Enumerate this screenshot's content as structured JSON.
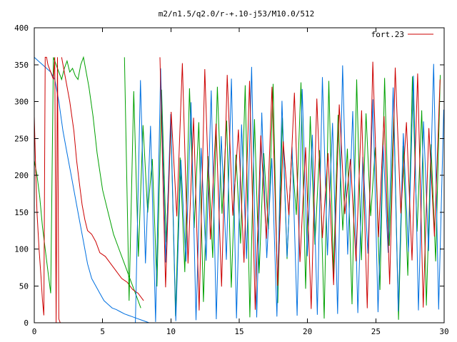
{
  "chart_data": {
    "type": "line",
    "title": "m2/n1.5/q2.0/r-+.10-j53/M10.0/512",
    "xlabel": "",
    "ylabel": "",
    "xlim": [
      0,
      30
    ],
    "ylim": [
      0,
      400
    ],
    "x_ticks": [
      0,
      5,
      10,
      15,
      20,
      25,
      30
    ],
    "y_ticks": [
      0,
      50,
      100,
      150,
      200,
      250,
      300,
      350,
      400
    ],
    "grid": false,
    "legend": {
      "placement": "top-right",
      "entries": [
        "fort.23"
      ]
    },
    "colors": {
      "red": "#cc0000",
      "green": "#00a000",
      "blue": "#0070e0"
    },
    "series": [
      {
        "name": "fort.23",
        "color": "#cc0000",
        "x": [
          0.0,
          0.1,
          0.2,
          0.35,
          0.5,
          0.6,
          0.7,
          0.8,
          0.9,
          1.0,
          1.1,
          1.2,
          1.4,
          1.5,
          1.6,
          1.7,
          1.8,
          1.9,
          2.0
        ],
        "y": [
          280,
          210,
          150,
          100,
          60,
          30,
          10,
          360,
          360,
          350,
          345,
          340,
          330,
          360,
          0,
          360,
          5,
          0,
          0
        ],
        "x2": [
          2.0,
          2.3,
          2.6,
          2.9,
          3.1,
          3.3,
          3.5,
          3.7,
          3.9,
          4.2,
          4.5,
          4.8,
          5.2,
          5.6,
          6.0,
          6.4,
          6.8,
          7.2,
          7.6,
          8.0
        ],
        "y2": [
          360,
          330,
          300,
          260,
          220,
          190,
          160,
          140,
          125,
          120,
          110,
          95,
          90,
          80,
          70,
          60,
          55,
          45,
          40,
          30
        ]
      },
      {
        "name": "",
        "color": "#00a000",
        "x": [
          0.0,
          0.2,
          0.4,
          0.6,
          0.8,
          1.0,
          1.2,
          1.4,
          1.6,
          1.8,
          2.0,
          2.2,
          2.4,
          2.6,
          2.8,
          3.0,
          3.2,
          3.4,
          3.6,
          3.8,
          4.0,
          4.3,
          4.6,
          5.0,
          5.4,
          5.8,
          6.2,
          6.6,
          7.0,
          7.4,
          7.8
        ],
        "y": [
          220,
          200,
          170,
          130,
          100,
          70,
          40,
          360,
          350,
          340,
          330,
          345,
          355,
          340,
          345,
          335,
          330,
          350,
          360,
          340,
          320,
          280,
          230,
          180,
          150,
          120,
          100,
          80,
          60,
          40,
          20
        ]
      },
      {
        "name": "",
        "color": "#0070e0",
        "x": [
          0.0,
          0.3,
          0.6,
          0.9,
          1.2,
          1.5,
          1.8,
          2.1,
          2.4,
          2.7,
          3.0,
          3.3,
          3.6,
          3.9,
          4.2,
          4.5,
          4.8,
          5.1,
          5.4,
          5.7,
          6.0,
          6.3,
          6.6,
          6.9,
          7.2,
          7.5,
          7.8,
          8.1,
          8.4
        ],
        "y": [
          360,
          355,
          350,
          345,
          340,
          330,
          300,
          260,
          230,
          200,
          170,
          140,
          110,
          80,
          60,
          50,
          40,
          30,
          25,
          20,
          18,
          15,
          12,
          10,
          8,
          6,
          4,
          2,
          0
        ]
      }
    ]
  }
}
